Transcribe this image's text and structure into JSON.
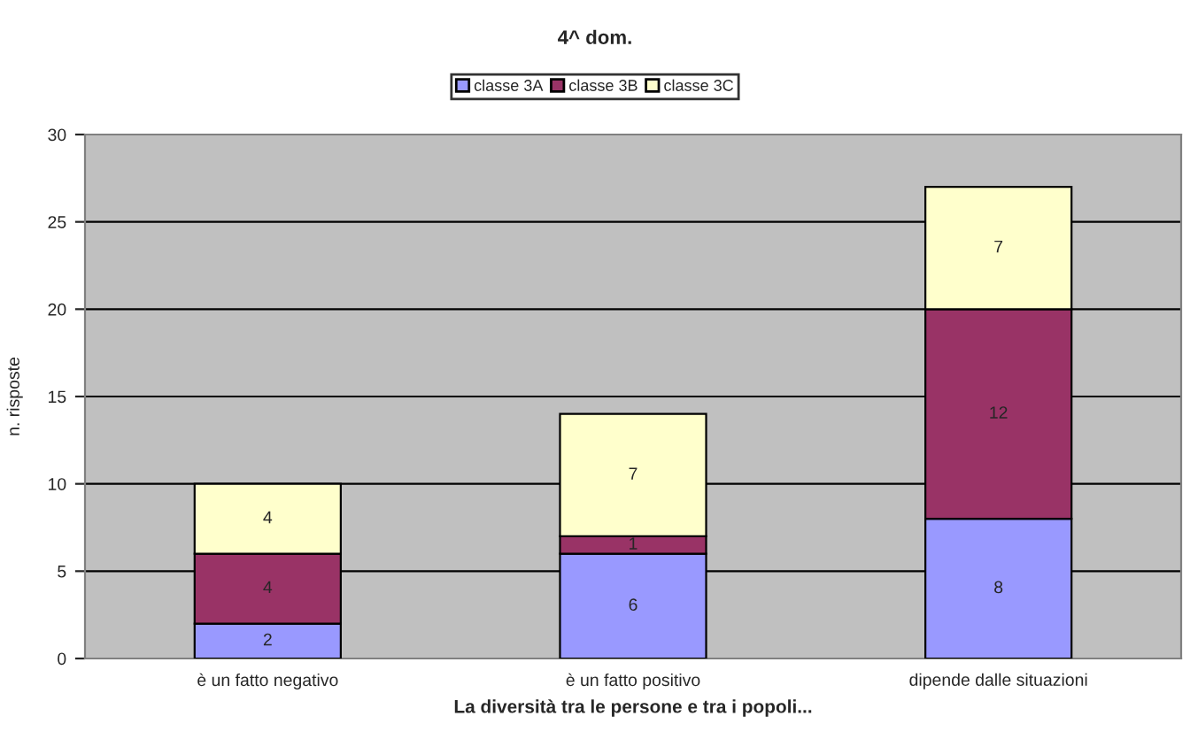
{
  "chart_data": {
    "type": "bar",
    "title": "4^ dom.",
    "xlabel": "La diversità tra le persone e tra i popoli...",
    "ylabel": "n. risposte",
    "categories": [
      "è un fatto negativo",
      "è un fatto positivo",
      "dipende dalle situazioni"
    ],
    "stacked": true,
    "series": [
      {
        "name": "classe 3A",
        "color": "#9999ff",
        "values": [
          2,
          6,
          8
        ]
      },
      {
        "name": "classe 3B",
        "color": "#993366",
        "values": [
          4,
          1,
          12
        ]
      },
      {
        "name": "classe 3C",
        "color": "#ffffcc",
        "values": [
          4,
          7,
          7
        ]
      }
    ],
    "ylim": [
      0,
      30
    ],
    "yticks": [
      0,
      5,
      10,
      15,
      20,
      25,
      30
    ],
    "grid": "y",
    "legend": "top",
    "data_labels": true
  }
}
